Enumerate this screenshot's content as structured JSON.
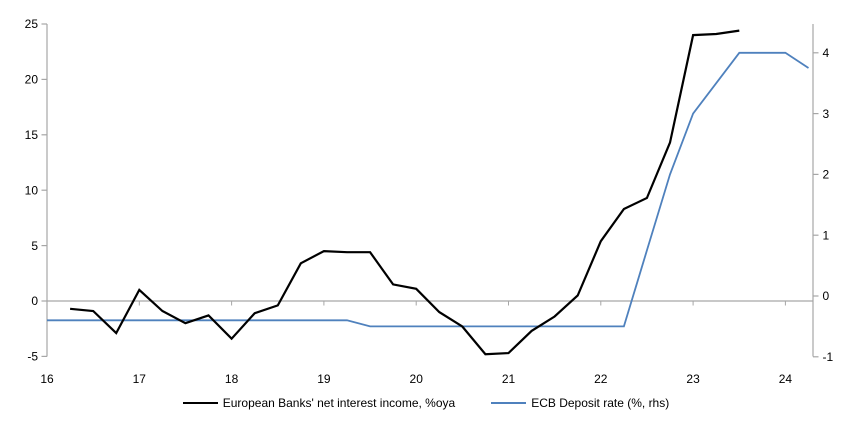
{
  "chart_data": {
    "type": "line",
    "series": [
      {
        "name": "European Banks' net interest income, %oya",
        "axis": "left",
        "color": "#000000",
        "x": [
          16.25,
          16.5,
          16.75,
          17.0,
          17.25,
          17.5,
          17.75,
          18.0,
          18.25,
          18.5,
          18.75,
          19.0,
          19.25,
          19.5,
          19.75,
          20.0,
          20.25,
          20.5,
          20.75,
          21.0,
          21.25,
          21.5,
          21.75,
          22.0,
          22.25,
          22.5,
          22.75,
          23.0,
          23.25,
          23.5
        ],
        "values": [
          -0.7,
          -0.9,
          -2.9,
          1.0,
          -0.9,
          -2.0,
          -1.3,
          -3.4,
          -1.1,
          -0.4,
          3.4,
          4.5,
          4.4,
          4.4,
          1.5,
          1.1,
          -1.0,
          -2.3,
          -4.8,
          -4.7,
          -2.7,
          -1.4,
          0.5,
          5.4,
          8.3,
          9.3,
          14.3,
          24.0,
          24.1,
          24.4
        ]
      },
      {
        "name": "ECB Deposit rate (%, rhs)",
        "axis": "right",
        "color": "#4f81bd",
        "x": [
          16.0,
          16.25,
          16.5,
          16.75,
          17.0,
          17.25,
          17.5,
          17.75,
          18.0,
          18.25,
          18.5,
          18.75,
          19.0,
          19.25,
          19.5,
          19.75,
          20.0,
          20.25,
          20.5,
          20.75,
          21.0,
          21.25,
          21.5,
          21.75,
          22.0,
          22.25,
          22.5,
          22.75,
          23.0,
          23.25,
          23.5,
          23.75,
          24.0,
          24.25
        ],
        "values": [
          -0.4,
          -0.4,
          -0.4,
          -0.4,
          -0.4,
          -0.4,
          -0.4,
          -0.4,
          -0.4,
          -0.4,
          -0.4,
          -0.4,
          -0.4,
          -0.4,
          -0.5,
          -0.5,
          -0.5,
          -0.5,
          -0.5,
          -0.5,
          -0.5,
          -0.5,
          -0.5,
          -0.5,
          -0.5,
          -0.5,
          0.75,
          2.0,
          3.0,
          3.5,
          4.0,
          4.0,
          4.0,
          3.75
        ]
      }
    ],
    "left_axis": {
      "ticks": [
        25,
        20,
        15,
        10,
        5,
        0,
        -5
      ],
      "tick_labels": [
        "25",
        "20",
        "15",
        "10",
        "5",
        "0",
        "-5"
      ],
      "range": [
        -5,
        25
      ]
    },
    "right_axis": {
      "ticks": [
        4,
        3,
        2,
        1,
        0,
        -1
      ],
      "tick_labels": [
        "4",
        "3",
        "2",
        "1",
        "0",
        "-1"
      ],
      "range": [
        -1,
        4.45
      ]
    },
    "x_axis": {
      "ticks": [
        16,
        17,
        18,
        19,
        20,
        21,
        22,
        23,
        24
      ],
      "tick_labels": [
        "16",
        "17",
        "18",
        "19",
        "20",
        "21",
        "22",
        "23",
        "24"
      ],
      "range": [
        16,
        24.3
      ]
    },
    "grid": "horizontal zero line only",
    "legend_position": "bottom"
  },
  "colors": {
    "axis": "#a6a6a6",
    "zero_line": "#a6a6a6",
    "nii_line": "#000000",
    "deposit_line": "#4f81bd",
    "text": "#000000"
  }
}
